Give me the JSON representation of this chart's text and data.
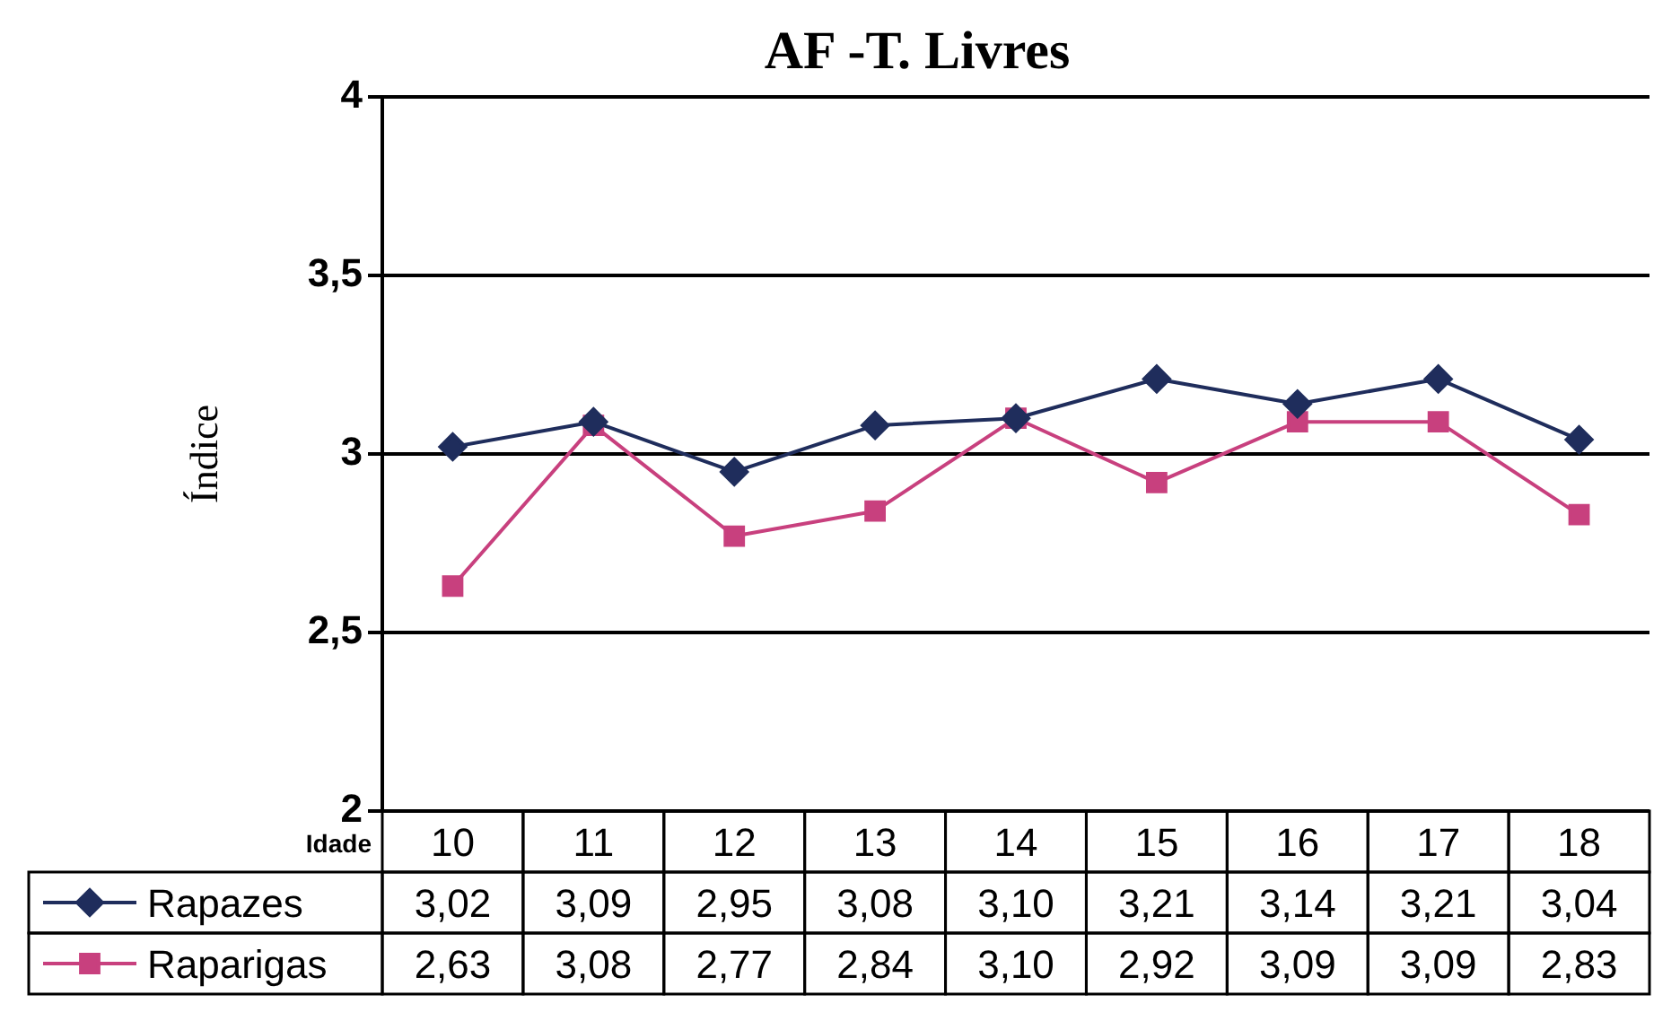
{
  "chart_data": {
    "type": "line",
    "title": "AF -T. Livres",
    "ylabel": "Índice",
    "xlabel": "Idade",
    "categories": [
      "10",
      "11",
      "12",
      "13",
      "14",
      "15",
      "16",
      "17",
      "18"
    ],
    "series": [
      {
        "name": "Rapazes",
        "color": "#1f2d5c",
        "marker": "diamond",
        "values": [
          3.02,
          3.09,
          2.95,
          3.08,
          3.1,
          3.21,
          3.14,
          3.21,
          3.04
        ],
        "value_labels": [
          "3,02",
          "3,09",
          "2,95",
          "3,08",
          "3,10",
          "3,21",
          "3,14",
          "3,21",
          "3,04"
        ]
      },
      {
        "name": "Raparigas",
        "color": "#c8407e",
        "marker": "square",
        "values": [
          2.63,
          3.08,
          2.77,
          2.84,
          3.1,
          2.92,
          3.09,
          3.09,
          2.83
        ],
        "value_labels": [
          "2,63",
          "3,08",
          "2,77",
          "2,84",
          "3,10",
          "2,92",
          "3,09",
          "3,09",
          "2,83"
        ]
      }
    ],
    "ylim": [
      2,
      4
    ],
    "yticks": [
      2,
      {
        "value": 2.5,
        "label": "2,5"
      },
      3,
      {
        "value": 3.5,
        "label": "3,5"
      },
      4
    ],
    "grid": "y",
    "legend": "bottom",
    "line_style": "solid"
  }
}
